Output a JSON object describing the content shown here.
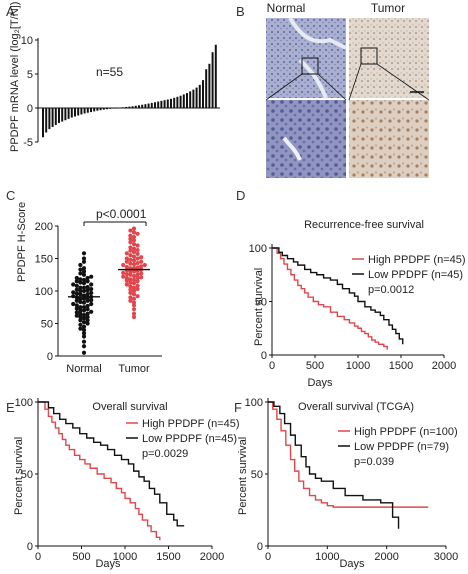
{
  "panels": {
    "A": {
      "label": "A",
      "ylabel": "PPDPF mRNA level (log₂[T/N])",
      "annotation": "n=55",
      "ticks": [
        "-5",
        "0",
        "5",
        "10"
      ]
    },
    "B": {
      "label": "B",
      "col_normal": "Normal",
      "col_tumor": "Tumor",
      "colors": {
        "normal_bg": "#aab0d0",
        "tumor_bg": "#e0d6cf",
        "normal_zoom": "#8a90bd",
        "tumor_zoom": "#d9cbbd"
      }
    },
    "C": {
      "label": "C",
      "ylabel": "PPDPF H-Score",
      "pvalue": "p<0.0001",
      "ticks": [
        "0",
        "50",
        "100",
        "150",
        "200"
      ],
      "groups": [
        "Normal",
        "Tumor"
      ],
      "colors": {
        "normal": "#111111",
        "tumor": "#e0474c"
      }
    },
    "D": {
      "label": "D",
      "title": "Recurrence-free survival",
      "xlabel": "Days",
      "ylabel": "Percent survival",
      "xticks": [
        "0",
        "500",
        "1000",
        "1500",
        "2000"
      ],
      "yticks": [
        "0",
        "50",
        "100"
      ],
      "legend": [
        "High PPDPF (n=45)",
        "Low PPDPF (n=45)"
      ],
      "pvalue": "p=0.0012"
    },
    "E": {
      "label": "E",
      "title": "Overall survival",
      "xlabel": "Days",
      "ylabel": "Percent survival",
      "xticks": [
        "0",
        "500",
        "1000",
        "1500",
        "2000"
      ],
      "yticks": [
        "0",
        "50",
        "100"
      ],
      "legend": [
        "High PPDPF (n=45)",
        "Low PPDPF (n=45)"
      ],
      "pvalue": "p=0.0029"
    },
    "F": {
      "label": "F",
      "title": "Overall survival (TCGA)",
      "xlabel": "Days",
      "ylabel": "Percent survival",
      "xticks": [
        "0",
        "1000",
        "2000",
        "3000"
      ],
      "yticks": [
        "0",
        "50",
        "100"
      ],
      "legend": [
        "High PPDPF (n=100)",
        "Low PPDPF (n=79)"
      ],
      "pvalue": "p=0.039"
    }
  },
  "colors": {
    "high": "#e0474c",
    "low": "#111111"
  },
  "chart_data": [
    {
      "type": "bar",
      "panel": "A",
      "ylabel": "PPDPF mRNA level (log₂[T/N])",
      "ylim": [
        -5,
        10
      ],
      "values": [
        -4.3,
        -3.6,
        -3.1,
        -2.8,
        -2.5,
        -2.2,
        -2.0,
        -1.8,
        -1.6,
        -1.4,
        -1.25,
        -1.1,
        -0.95,
        -0.8,
        -0.7,
        -0.6,
        -0.5,
        -0.4,
        -0.32,
        -0.25,
        -0.18,
        -0.12,
        -0.06,
        0.0,
        0.05,
        0.1,
        0.15,
        0.2,
        0.26,
        0.33,
        0.4,
        0.48,
        0.56,
        0.65,
        0.75,
        0.85,
        0.95,
        1.05,
        1.15,
        1.25,
        1.35,
        1.5,
        1.65,
        1.8,
        2.0,
        2.2,
        2.45,
        2.7,
        3.0,
        3.4,
        4.1,
        5.7,
        6.5,
        8.2,
        9.3
      ]
    },
    {
      "type": "scatter",
      "panel": "C",
      "ylabel": "PPDPF H-Score",
      "ylim": [
        0,
        200
      ],
      "series": [
        {
          "name": "Normal",
          "values": [
            5,
            15,
            22,
            30,
            35,
            40,
            42,
            45,
            48,
            50,
            52,
            55,
            55,
            58,
            60,
            60,
            62,
            63,
            65,
            65,
            67,
            68,
            70,
            70,
            72,
            73,
            75,
            75,
            77,
            78,
            80,
            80,
            82,
            83,
            85,
            85,
            86,
            88,
            88,
            90,
            90,
            91,
            92,
            93,
            95,
            95,
            96,
            97,
            98,
            100,
            100,
            101,
            102,
            103,
            105,
            105,
            106,
            108,
            110,
            110,
            112,
            113,
            115,
            115,
            117,
            118,
            120,
            120,
            122,
            125,
            127,
            130,
            133,
            135,
            140,
            145,
            150,
            158
          ],
          "mean": 91
        },
        {
          "name": "Tumor",
          "values": [
            60,
            65,
            72,
            78,
            82,
            85,
            88,
            90,
            92,
            95,
            97,
            100,
            102,
            103,
            105,
            107,
            108,
            110,
            112,
            113,
            115,
            116,
            117,
            118,
            120,
            120,
            121,
            122,
            123,
            125,
            125,
            126,
            127,
            128,
            130,
            130,
            131,
            132,
            133,
            135,
            135,
            136,
            137,
            138,
            140,
            140,
            141,
            142,
            143,
            145,
            145,
            147,
            148,
            150,
            150,
            152,
            153,
            155,
            157,
            158,
            160,
            162,
            163,
            165,
            167,
            170,
            172,
            175,
            178,
            180,
            183,
            185,
            188,
            190,
            193,
            196
          ],
          "mean": 133
        }
      ]
    },
    {
      "type": "line",
      "panel": "D",
      "title": "Recurrence-free survival",
      "xlabel": "Days",
      "ylabel": "Percent survival",
      "xlim": [
        0,
        2000
      ],
      "ylim": [
        0,
        100
      ],
      "series": [
        {
          "name": "High PPDPF (n=45)",
          "x": [
            0,
            60,
            100,
            140,
            180,
            220,
            260,
            300,
            340,
            380,
            420,
            480,
            540,
            600,
            680,
            760,
            840,
            900,
            960,
            1000,
            1040,
            1080,
            1120,
            1160,
            1200,
            1240,
            1300,
            1340
          ],
          "y": [
            100,
            95,
            90,
            85,
            80,
            75,
            70,
            65,
            62,
            58,
            54,
            50,
            47,
            45,
            40,
            36,
            33,
            30,
            27,
            25,
            22,
            20,
            17,
            14,
            12,
            10,
            8,
            5
          ]
        },
        {
          "name": "Low PPDPF (n=45)",
          "x": [
            0,
            80,
            120,
            180,
            250,
            300,
            380,
            450,
            520,
            600,
            680,
            760,
            820,
            900,
            960,
            1000,
            1080,
            1150,
            1200,
            1260,
            1300,
            1360,
            1400,
            1440,
            1480,
            1520
          ],
          "y": [
            100,
            96,
            93,
            90,
            87,
            84,
            80,
            77,
            75,
            72,
            70,
            66,
            62,
            58,
            55,
            50,
            45,
            42,
            40,
            37,
            33,
            28,
            24,
            20,
            15,
            10
          ]
        }
      ]
    },
    {
      "type": "line",
      "panel": "E",
      "title": "Overall survival",
      "xlabel": "Days",
      "ylabel": "Percent survival",
      "xlim": [
        0,
        2000
      ],
      "ylim": [
        0,
        100
      ],
      "series": [
        {
          "name": "High PPDPF (n=45)",
          "x": [
            0,
            80,
            120,
            160,
            200,
            240,
            280,
            320,
            360,
            420,
            480,
            540,
            600,
            680,
            760,
            840,
            900,
            960,
            1000,
            1060,
            1120,
            1160,
            1200,
            1260,
            1300,
            1360,
            1400
          ],
          "y": [
            100,
            95,
            90,
            86,
            82,
            78,
            74,
            70,
            67,
            63,
            60,
            57,
            54,
            50,
            47,
            44,
            40,
            37,
            33,
            30,
            26,
            22,
            18,
            14,
            10,
            6,
            4
          ]
        },
        {
          "name": "Low PPDPF (n=45)",
          "x": [
            0,
            120,
            180,
            250,
            320,
            400,
            480,
            560,
            640,
            720,
            800,
            880,
            960,
            1040,
            1100,
            1160,
            1220,
            1280,
            1340,
            1400,
            1480,
            1560,
            1600,
            1680
          ],
          "y": [
            100,
            96,
            92,
            88,
            85,
            82,
            78,
            75,
            72,
            70,
            67,
            63,
            60,
            57,
            52,
            48,
            45,
            40,
            36,
            30,
            22,
            18,
            14,
            14
          ]
        }
      ]
    },
    {
      "type": "line",
      "panel": "F",
      "title": "Overall survival (TCGA)",
      "xlabel": "Days",
      "ylabel": "Percent survival",
      "xlim": [
        0,
        3000
      ],
      "ylim": [
        0,
        100
      ],
      "series": [
        {
          "name": "High PPDPF (n=100)",
          "x": [
            0,
            80,
            150,
            220,
            300,
            380,
            450,
            520,
            600,
            700,
            800,
            900,
            1000,
            1100,
            1300,
            1500,
            2000,
            2700
          ],
          "y": [
            100,
            95,
            88,
            80,
            70,
            60,
            52,
            45,
            40,
            35,
            32,
            30,
            28,
            27,
            27,
            27,
            27,
            27
          ]
        },
        {
          "name": "Low PPDPF (n=79)",
          "x": [
            0,
            100,
            200,
            280,
            380,
            460,
            560,
            640,
            700,
            800,
            900,
            1100,
            1300,
            1600,
            1900,
            2100,
            2200
          ],
          "y": [
            100,
            97,
            92,
            85,
            77,
            70,
            62,
            55,
            50,
            47,
            45,
            40,
            35,
            32,
            30,
            20,
            12
          ]
        }
      ]
    }
  ]
}
